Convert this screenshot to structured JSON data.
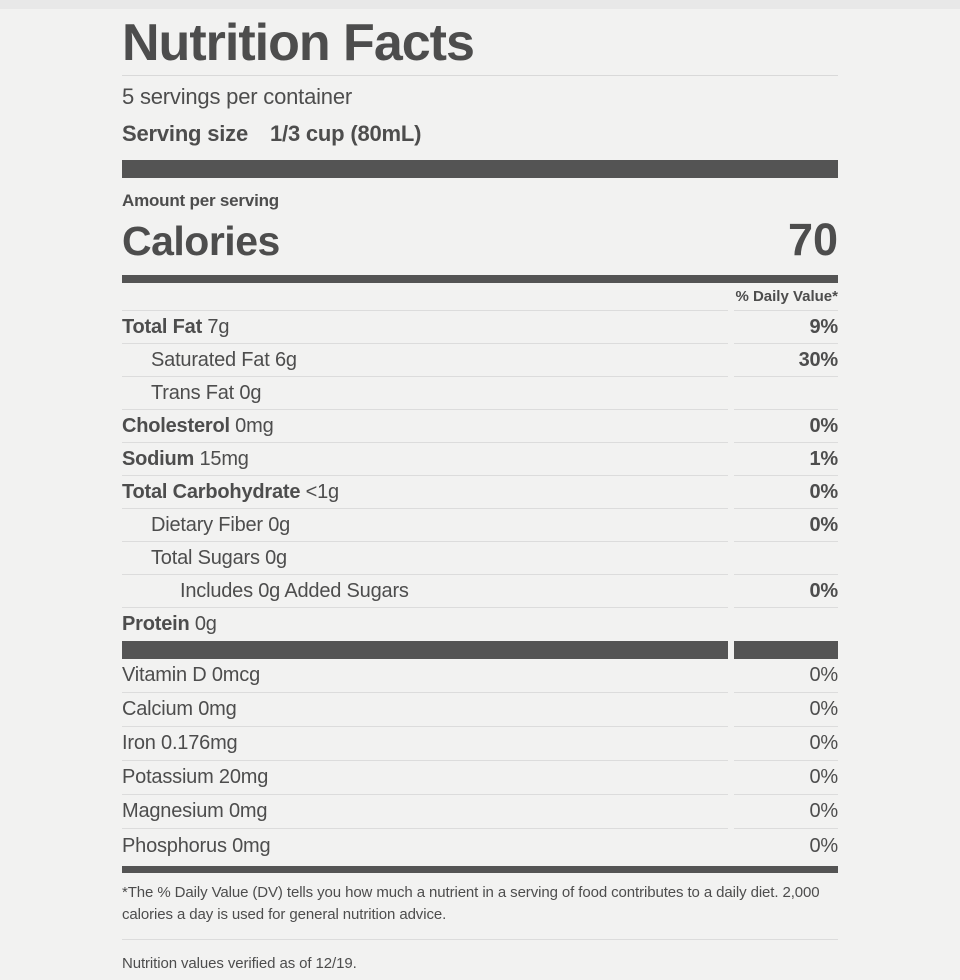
{
  "label": {
    "title": "Nutrition Facts",
    "servings_per_container": "5 servings per container",
    "serving_size_label": "Serving size",
    "serving_size_value": "1/3 cup (80mL)",
    "amount_per_serving": "Amount per serving",
    "calories_label": "Calories",
    "calories_value": "70",
    "daily_value_header": "% Daily Value*",
    "nutrients": [
      {
        "name": "Total Fat",
        "amount": "7g",
        "dv": "9%",
        "bold": true,
        "indent": 0,
        "dv_bold": true
      },
      {
        "name": "Saturated Fat",
        "amount": "6g",
        "dv": "30%",
        "bold": false,
        "indent": 1,
        "dv_bold": true
      },
      {
        "name": "Trans Fat",
        "amount": "0g",
        "dv": "",
        "bold": false,
        "indent": 1,
        "dv_bold": false
      },
      {
        "name": "Cholesterol",
        "amount": "0mg",
        "dv": "0%",
        "bold": true,
        "indent": 0,
        "dv_bold": true
      },
      {
        "name": "Sodium",
        "amount": "15mg",
        "dv": "1%",
        "bold": true,
        "indent": 0,
        "dv_bold": true
      },
      {
        "name": "Total Carbohydrate",
        "amount": "<1g",
        "dv": "0%",
        "bold": true,
        "indent": 0,
        "dv_bold": true
      },
      {
        "name": "Dietary Fiber",
        "amount": "0g",
        "dv": "0%",
        "bold": false,
        "indent": 1,
        "dv_bold": true
      },
      {
        "name": "Total Sugars",
        "amount": "0g",
        "dv": "",
        "bold": false,
        "indent": 1,
        "dv_bold": false
      },
      {
        "name": "Includes 0g Added Sugars",
        "amount": "",
        "dv": "0%",
        "bold": false,
        "indent": 2,
        "dv_bold": true
      },
      {
        "name": "Protein",
        "amount": "0g",
        "dv": "",
        "bold": true,
        "indent": 0,
        "dv_bold": false
      }
    ],
    "micronutrients": [
      {
        "name": "Vitamin D",
        "amount": "0mcg",
        "dv": "0%"
      },
      {
        "name": "Calcium",
        "amount": "0mg",
        "dv": "0%"
      },
      {
        "name": "Iron",
        "amount": "0.176mg",
        "dv": "0%"
      },
      {
        "name": "Potassium",
        "amount": "20mg",
        "dv": "0%"
      },
      {
        "name": "Magnesium",
        "amount": "0mg",
        "dv": "0%"
      },
      {
        "name": "Phosphorus",
        "amount": "0mg",
        "dv": "0%"
      }
    ],
    "footnote": "*The % Daily Value (DV) tells you how much a nutrient in a serving of food contributes to a daily diet. 2,000 calories a day is used for general nutrition advice.",
    "verification_note": "Nutrition values verified as of 12/19.",
    "colors": {
      "text": "#4d4d4d",
      "bar": "#545454",
      "divider": "#dcdcdc",
      "background": "#f2f2f1"
    }
  }
}
